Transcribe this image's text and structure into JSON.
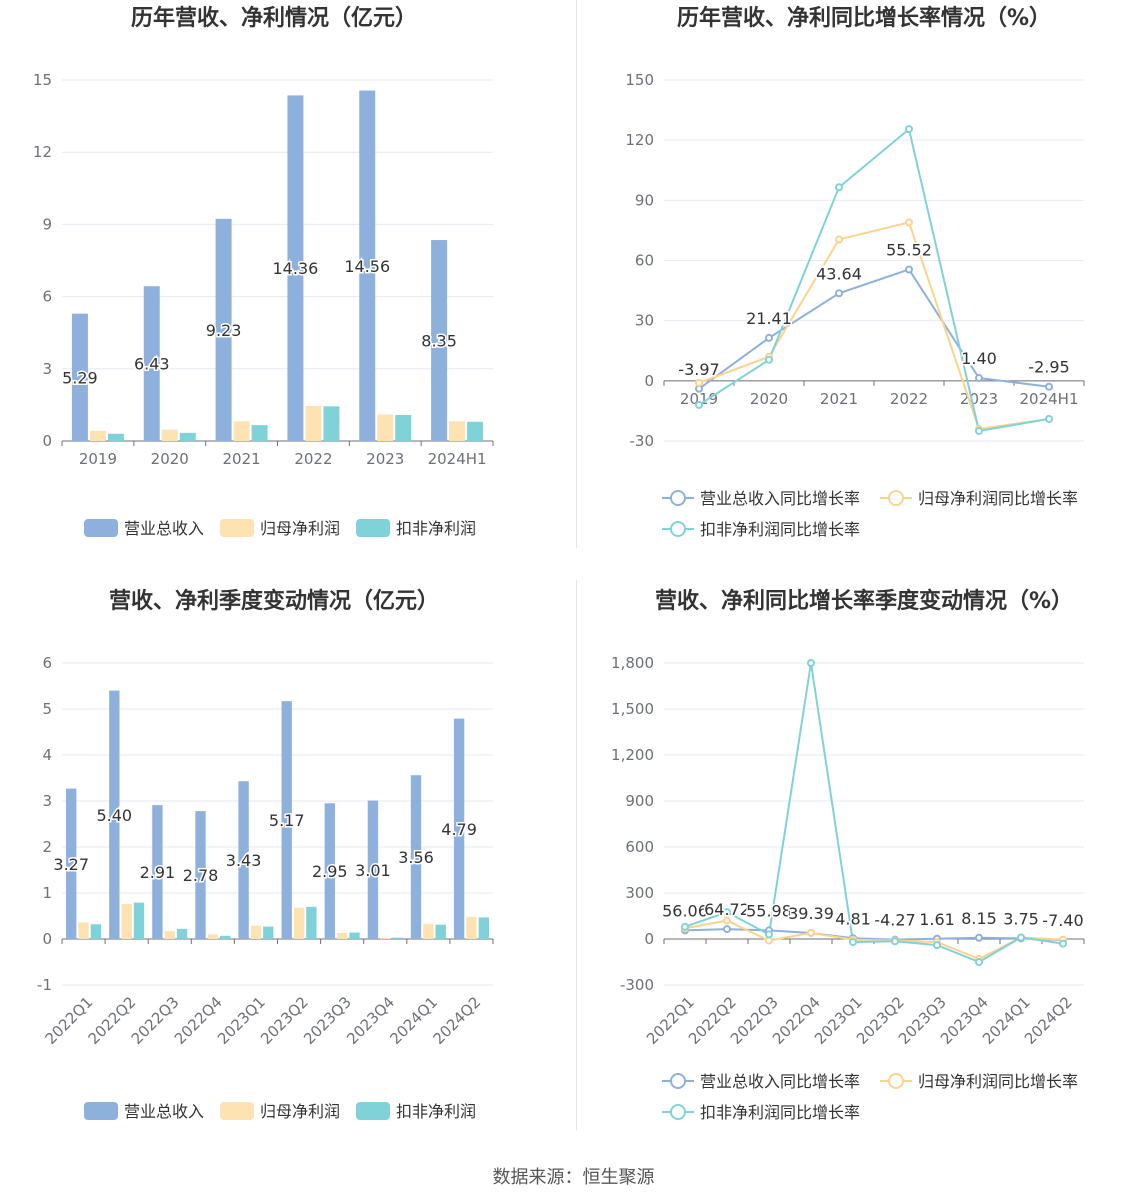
{
  "source": "数据来源：恒生聚源",
  "colors": {
    "revenue": "#8eb0dd",
    "net_profit": "#fde2b2",
    "deducted_profit": "#7fd3d8",
    "grid": "#e6e9f0",
    "axis": "#6e7079"
  },
  "chart_data": [
    {
      "type": "bar",
      "title": "历年营收、净利情况（亿元）",
      "categories": [
        "2019",
        "2020",
        "2021",
        "2022",
        "2023",
        "2024H1"
      ],
      "ylim": [
        0,
        15
      ],
      "yticks": [
        0,
        3,
        6,
        9,
        12,
        15
      ],
      "grid": true,
      "legend_position": "bottom",
      "series": [
        {
          "name": "营业总收入",
          "values": [
            5.29,
            6.43,
            9.23,
            14.36,
            14.56,
            8.35
          ],
          "labels": [
            "5.29",
            "6.43",
            "9.23",
            "14.36",
            "14.56",
            "8.35"
          ]
        },
        {
          "name": "归母净利润",
          "values": [
            0.42,
            0.47,
            0.82,
            1.46,
            1.1,
            0.82
          ]
        },
        {
          "name": "扣非净利润",
          "values": [
            0.3,
            0.34,
            0.66,
            1.44,
            1.08,
            0.8
          ]
        }
      ]
    },
    {
      "type": "line",
      "title": "历年营收、净利同比增长率情况（%）",
      "categories": [
        "2019",
        "2020",
        "2021",
        "2022",
        "2023",
        "2024H1"
      ],
      "ylim": [
        -30,
        150
      ],
      "yticks": [
        -30,
        0,
        30,
        60,
        90,
        120,
        150
      ],
      "grid": true,
      "legend_position": "bottom",
      "series": [
        {
          "name": "营业总收入同比增长率",
          "values": [
            -3.97,
            21.41,
            43.64,
            55.52,
            1.4,
            -2.95
          ],
          "labels": [
            "-3.97",
            "21.41",
            "43.64",
            "55.52",
            "1.40",
            "-2.95"
          ]
        },
        {
          "name": "归母净利润同比增长率",
          "values": [
            -1,
            12,
            70.5,
            79,
            -24,
            -19
          ]
        },
        {
          "name": "扣非净利润同比增长率",
          "values": [
            -12,
            10.5,
            96.5,
            125.5,
            -25,
            -19
          ]
        }
      ]
    },
    {
      "type": "bar",
      "title": "营收、净利季度变动情况（亿元）",
      "categories": [
        "2022Q1",
        "2022Q2",
        "2022Q3",
        "2022Q4",
        "2023Q1",
        "2023Q2",
        "2023Q3",
        "2023Q4",
        "2024Q1",
        "2024Q2"
      ],
      "ylim": [
        -1,
        6
      ],
      "yticks": [
        -1,
        0,
        1,
        2,
        3,
        4,
        5,
        6
      ],
      "grid": true,
      "legend_position": "bottom",
      "series": [
        {
          "name": "营业总收入",
          "values": [
            3.27,
            5.4,
            2.91,
            2.78,
            3.43,
            5.17,
            2.95,
            3.01,
            3.56,
            4.79
          ],
          "labels": [
            "3.27",
            "5.40",
            "2.91",
            "2.78",
            "3.43",
            "5.17",
            "2.95",
            "3.01",
            "3.56",
            "4.79"
          ]
        },
        {
          "name": "归母净利润",
          "values": [
            0.36,
            0.76,
            0.17,
            0.1,
            0.29,
            0.68,
            0.13,
            0.02,
            0.33,
            0.48
          ]
        },
        {
          "name": "扣非净利润",
          "values": [
            0.32,
            0.79,
            0.22,
            0.07,
            0.27,
            0.7,
            0.14,
            0.03,
            0.31,
            0.47
          ]
        }
      ]
    },
    {
      "type": "line",
      "title": "营收、净利同比增长率季度变动情况（%）",
      "categories": [
        "2022Q1",
        "2022Q2",
        "2022Q3",
        "2022Q4",
        "2023Q1",
        "2023Q2",
        "2023Q3",
        "2023Q4",
        "2024Q1",
        "2024Q2"
      ],
      "ylim": [
        -300,
        1800
      ],
      "yticks": [
        -300,
        0,
        300,
        600,
        900,
        1200,
        1500,
        1800
      ],
      "ytick_labels": [
        "-300",
        "0",
        "300",
        "600",
        "900",
        "1,200",
        "1,500",
        "1,800"
      ],
      "grid": true,
      "legend_position": "bottom",
      "series": [
        {
          "name": "营业总收入同比增长率",
          "values": [
            56.06,
            64.72,
            55.98,
            39.39,
            4.81,
            -4.27,
            1.61,
            8.15,
            3.75,
            -7.4
          ],
          "labels": [
            "56.06",
            "64.72",
            "55.98",
            "39.39",
            "4.81",
            "-4.27",
            "1.61",
            "8.15",
            "3.75",
            "-7.40"
          ]
        },
        {
          "name": "归母净利润同比增长率",
          "values": [
            70,
            120,
            -10,
            40,
            -5,
            -10,
            -20,
            -130,
            10,
            -5
          ]
        },
        {
          "name": "扣非净利润同比增长率",
          "values": [
            80,
            175,
            30,
            1800,
            -20,
            -15,
            -40,
            -150,
            10,
            -30
          ]
        }
      ]
    }
  ]
}
